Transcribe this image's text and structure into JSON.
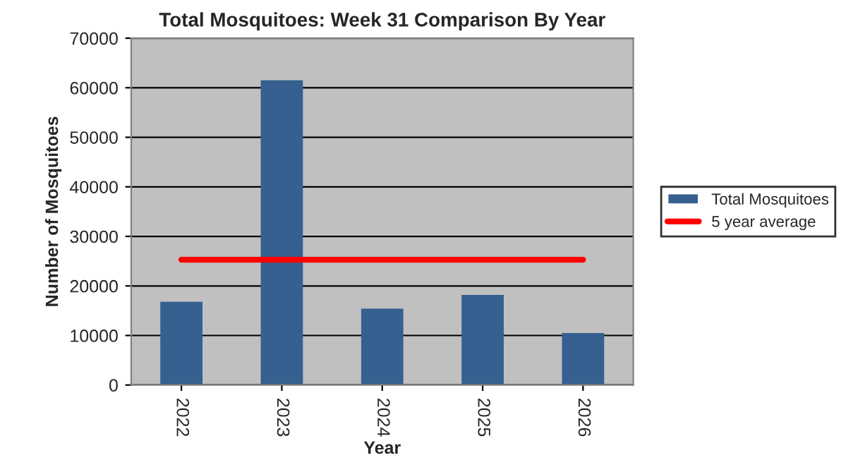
{
  "chart_data": {
    "type": "bar",
    "title": "Total Mosquitoes: Week 31 Comparison By Year",
    "xlabel": "Year",
    "ylabel": "Number of Mosquitoes",
    "categories": [
      "2022",
      "2023",
      "2024",
      "2025",
      "2026"
    ],
    "series": [
      {
        "name": "Total Mosquitoes",
        "color": "#35608f",
        "values": [
          16800,
          61500,
          15400,
          18200,
          10500
        ]
      },
      {
        "name": "5 year average",
        "type": "line",
        "color": "#ff0000",
        "values": [
          25300,
          25300,
          25300,
          25300,
          25300
        ]
      }
    ],
    "ylim": [
      0,
      70000
    ],
    "yticks": [
      0,
      10000,
      20000,
      30000,
      40000,
      50000,
      60000,
      70000
    ],
    "grid": "y",
    "legend": "right",
    "marker": "none"
  }
}
